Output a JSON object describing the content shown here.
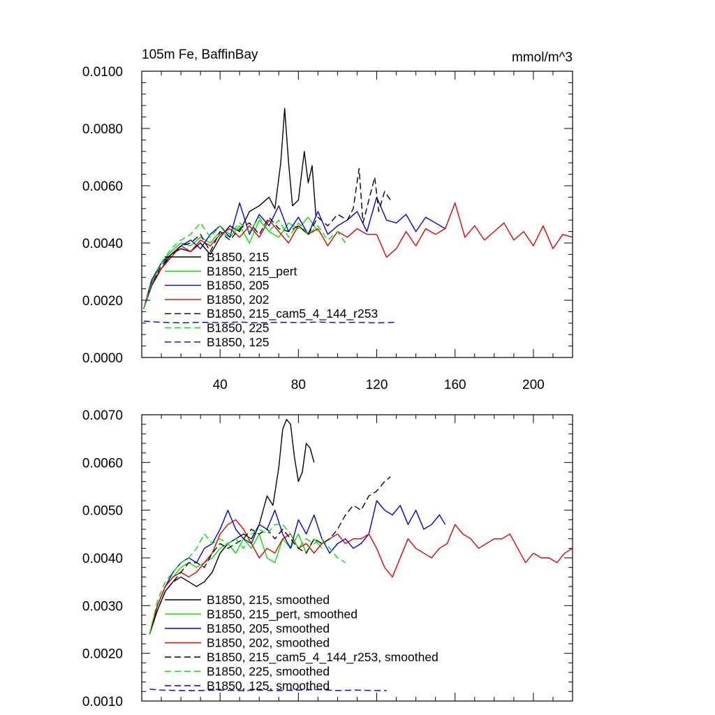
{
  "chart_data": [
    {
      "type": "line",
      "title": "105m Fe, BaffinBay",
      "units": "mmol/m^3",
      "xlim": [
        0,
        220
      ],
      "ylim": [
        0,
        0.01
      ],
      "xticks": [
        40,
        80,
        120,
        160,
        200
      ],
      "xtick_labels": [
        "40",
        "80",
        "120",
        "160",
        "200"
      ],
      "yticks": [
        0,
        0.002,
        0.004,
        0.006,
        0.008,
        0.01
      ],
      "ytick_labels": [
        "0.0000",
        "0.0020",
        "0.0040",
        "0.0060",
        "0.0080",
        "0.0100"
      ],
      "legend_position": "lower-left",
      "series": [
        {
          "name": "B1850, 215",
          "color": "#000000",
          "dash": "solid",
          "x": [
            1,
            5,
            10,
            15,
            20,
            25,
            30,
            35,
            40,
            45,
            50,
            55,
            60,
            65,
            68,
            71,
            73,
            75,
            77,
            80,
            83,
            85,
            87,
            89
          ],
          "y": [
            0.0017,
            0.0025,
            0.0031,
            0.0036,
            0.0038,
            0.0037,
            0.004,
            0.0036,
            0.0042,
            0.0046,
            0.0044,
            0.0051,
            0.0053,
            0.0056,
            0.0052,
            0.0068,
            0.0087,
            0.0068,
            0.0053,
            0.0055,
            0.0072,
            0.0061,
            0.0067,
            0.0049
          ]
        },
        {
          "name": "B1850, 215_pert",
          "color": "#00e000",
          "dash": "solid",
          "x": [
            1,
            5,
            10,
            15,
            20,
            25,
            30,
            35,
            40,
            45,
            50,
            55,
            60,
            65,
            70,
            75,
            80,
            85,
            90
          ],
          "y": [
            0.0017,
            0.0026,
            0.0033,
            0.0037,
            0.004,
            0.0039,
            0.0042,
            0.004,
            0.0044,
            0.0042,
            0.0046,
            0.004,
            0.0048,
            0.0044,
            0.0042,
            0.0047,
            0.0045,
            0.0049,
            0.0044
          ]
        },
        {
          "name": "B1850, 205",
          "color": "#0000e0",
          "dash": "solid",
          "x": [
            1,
            5,
            10,
            15,
            20,
            25,
            30,
            35,
            40,
            45,
            50,
            55,
            60,
            65,
            70,
            75,
            80,
            85,
            90,
            95,
            100,
            105,
            110,
            115,
            120,
            125,
            130,
            135,
            140,
            145,
            150,
            155
          ],
          "y": [
            0.0017,
            0.0027,
            0.0033,
            0.0036,
            0.0039,
            0.0041,
            0.0038,
            0.0043,
            0.0046,
            0.0042,
            0.0054,
            0.0043,
            0.005,
            0.0046,
            0.0053,
            0.0044,
            0.0049,
            0.0043,
            0.0051,
            0.0043,
            0.0046,
            0.0048,
            0.0051,
            0.0044,
            0.0056,
            0.0048,
            0.0047,
            0.005,
            0.0044,
            0.0049,
            0.0047,
            0.0045
          ]
        },
        {
          "name": "B1850, 202",
          "color": "#e00000",
          "dash": "solid",
          "x": [
            1,
            5,
            10,
            15,
            20,
            25,
            30,
            35,
            40,
            45,
            50,
            55,
            60,
            65,
            70,
            75,
            80,
            85,
            90,
            95,
            100,
            105,
            110,
            115,
            120,
            125,
            130,
            135,
            140,
            145,
            150,
            155,
            160,
            165,
            170,
            175,
            180,
            185,
            190,
            195,
            200,
            205,
            210,
            215,
            220
          ],
          "y": [
            0.0017,
            0.0026,
            0.0031,
            0.0035,
            0.0039,
            0.0037,
            0.0041,
            0.0039,
            0.0043,
            0.0045,
            0.0042,
            0.0046,
            0.0042,
            0.0048,
            0.0044,
            0.004,
            0.0046,
            0.0043,
            0.0045,
            0.0039,
            0.0044,
            0.0042,
            0.0045,
            0.0043,
            0.0043,
            0.0035,
            0.0038,
            0.0044,
            0.0039,
            0.0045,
            0.0043,
            0.0045,
            0.0054,
            0.0042,
            0.0046,
            0.0041,
            0.0044,
            0.0047,
            0.0041,
            0.0044,
            0.0039,
            0.0046,
            0.0038,
            0.0043,
            0.0042
          ]
        },
        {
          "name": "B1850, 215_cam5_4_144_r253",
          "color": "#000000",
          "dash": "dashed",
          "x": [
            1,
            5,
            10,
            15,
            20,
            25,
            30,
            35,
            40,
            45,
            50,
            55,
            60,
            65,
            70,
            75,
            80,
            85,
            90,
            95,
            100,
            105,
            108,
            111,
            113,
            116,
            119,
            121,
            124,
            127
          ],
          "y": [
            0.0017,
            0.0026,
            0.0032,
            0.0036,
            0.0039,
            0.004,
            0.0043,
            0.0037,
            0.0044,
            0.0041,
            0.0045,
            0.0047,
            0.0043,
            0.0049,
            0.0045,
            0.0044,
            0.0046,
            0.0043,
            0.0049,
            0.0046,
            0.005,
            0.0048,
            0.0052,
            0.0066,
            0.0047,
            0.0055,
            0.0063,
            0.0051,
            0.0058,
            0.0055
          ]
        },
        {
          "name": "B1850, 225",
          "color": "#00e000",
          "dash": "dashed",
          "x": [
            1,
            5,
            10,
            15,
            20,
            25,
            30,
            35,
            40,
            45,
            50,
            55,
            60,
            65,
            70,
            75,
            80,
            85,
            90,
            95,
            100,
            105
          ],
          "y": [
            0.0017,
            0.0026,
            0.0033,
            0.0038,
            0.0041,
            0.0043,
            0.0047,
            0.0042,
            0.0046,
            0.0043,
            0.0047,
            0.0044,
            0.0049,
            0.0044,
            0.0048,
            0.0042,
            0.0047,
            0.0043,
            0.0046,
            0.0041,
            0.0044,
            0.0039
          ]
        },
        {
          "name": "B1850, 125",
          "color": "#0000e0",
          "dash": "dashed",
          "x": [
            1,
            10,
            20,
            30,
            40,
            50,
            60,
            70,
            80,
            90,
            100,
            110,
            120,
            130
          ],
          "y": [
            0.00127,
            0.00123,
            0.00121,
            0.00123,
            0.00122,
            0.00124,
            0.00121,
            0.00123,
            0.00122,
            0.00124,
            0.00122,
            0.00123,
            0.00121,
            0.00123
          ]
        }
      ]
    },
    {
      "type": "line",
      "title": "",
      "xlim": [
        0,
        220
      ],
      "ylim": [
        0.001,
        0.007
      ],
      "xticks": [
        40,
        80,
        120,
        160,
        200
      ],
      "yticks": [
        0.001,
        0.002,
        0.003,
        0.004,
        0.005,
        0.006,
        0.007
      ],
      "ytick_labels": [
        "0.0010",
        "0.0020",
        "0.0030",
        "0.0040",
        "0.0050",
        "0.0060",
        "0.0070"
      ],
      "legend_position": "lower-left",
      "series": [
        {
          "name": "B1850, 215, smoothed",
          "color": "#000000",
          "dash": "solid",
          "x": [
            4,
            8,
            12,
            16,
            20,
            24,
            28,
            32,
            36,
            40,
            44,
            48,
            52,
            56,
            60,
            64,
            67,
            70,
            72,
            74,
            76,
            78,
            80,
            82,
            84,
            86,
            88
          ],
          "y": [
            0.0024,
            0.0029,
            0.0033,
            0.0035,
            0.0036,
            0.0035,
            0.0034,
            0.0035,
            0.0037,
            0.0041,
            0.0043,
            0.0044,
            0.0045,
            0.0044,
            0.0047,
            0.0053,
            0.0051,
            0.0059,
            0.0067,
            0.0069,
            0.0068,
            0.0061,
            0.0056,
            0.0058,
            0.0064,
            0.0063,
            0.006
          ]
        },
        {
          "name": "B1850, 215_pert, smoothed",
          "color": "#00e000",
          "dash": "solid",
          "x": [
            4,
            8,
            12,
            16,
            20,
            24,
            28,
            32,
            36,
            40,
            44,
            48,
            52,
            56,
            60,
            64,
            68,
            72,
            76,
            80,
            84,
            88,
            92
          ],
          "y": [
            0.0024,
            0.003,
            0.0034,
            0.0036,
            0.0038,
            0.0039,
            0.0038,
            0.0039,
            0.004,
            0.0042,
            0.0043,
            0.0041,
            0.0044,
            0.0042,
            0.0045,
            0.004,
            0.0039,
            0.0044,
            0.0042,
            0.0045,
            0.0041,
            0.0044,
            0.0042
          ]
        },
        {
          "name": "B1850, 205, smoothed",
          "color": "#0000e0",
          "dash": "solid",
          "x": [
            4,
            8,
            12,
            16,
            20,
            24,
            28,
            32,
            36,
            40,
            44,
            48,
            52,
            56,
            60,
            64,
            68,
            72,
            76,
            80,
            84,
            88,
            92,
            96,
            100,
            104,
            108,
            112,
            116,
            120,
            124,
            128,
            132,
            136,
            140,
            144,
            148,
            152,
            155
          ],
          "y": [
            0.0024,
            0.003,
            0.0034,
            0.0037,
            0.0039,
            0.004,
            0.0039,
            0.0042,
            0.0043,
            0.0046,
            0.005,
            0.0046,
            0.0044,
            0.0043,
            0.0047,
            0.0046,
            0.005,
            0.0045,
            0.0042,
            0.0048,
            0.0045,
            0.0049,
            0.0044,
            0.0041,
            0.0043,
            0.0044,
            0.0042,
            0.0043,
            0.0045,
            0.0052,
            0.005,
            0.0049,
            0.0051,
            0.0047,
            0.005,
            0.0046,
            0.0047,
            0.0049,
            0.0047
          ]
        },
        {
          "name": "B1850, 202, smoothed",
          "color": "#e00000",
          "dash": "solid",
          "x": [
            4,
            8,
            12,
            16,
            20,
            24,
            28,
            32,
            36,
            40,
            44,
            48,
            52,
            56,
            60,
            64,
            68,
            72,
            76,
            80,
            84,
            88,
            92,
            96,
            100,
            104,
            108,
            112,
            116,
            120,
            124,
            128,
            132,
            136,
            140,
            144,
            148,
            152,
            156,
            160,
            164,
            168,
            172,
            176,
            180,
            184,
            188,
            192,
            196,
            200,
            204,
            208,
            212,
            216,
            220
          ],
          "y": [
            0.0024,
            0.003,
            0.0034,
            0.0036,
            0.0037,
            0.0036,
            0.0037,
            0.0039,
            0.0041,
            0.0045,
            0.0047,
            0.0048,
            0.0046,
            0.0043,
            0.004,
            0.0042,
            0.0041,
            0.0044,
            0.0045,
            0.0042,
            0.0043,
            0.0041,
            0.0043,
            0.0044,
            0.0045,
            0.0043,
            0.0044,
            0.0044,
            0.0045,
            0.0042,
            0.0038,
            0.0036,
            0.004,
            0.0044,
            0.0042,
            0.0041,
            0.004,
            0.0042,
            0.0043,
            0.0047,
            0.0045,
            0.0044,
            0.0042,
            0.0043,
            0.0044,
            0.0044,
            0.0045,
            0.0042,
            0.0039,
            0.0041,
            0.004,
            0.004,
            0.0039,
            0.0041,
            0.0042
          ]
        },
        {
          "name": "B1850, 215_cam5_4_144_r253, smoothed",
          "color": "#000000",
          "dash": "dashed",
          "x": [
            4,
            8,
            12,
            16,
            20,
            24,
            28,
            32,
            36,
            40,
            44,
            48,
            52,
            56,
            60,
            64,
            68,
            72,
            76,
            80,
            84,
            88,
            92,
            96,
            100,
            104,
            108,
            112,
            116,
            120,
            124,
            127
          ],
          "y": [
            0.0024,
            0.0029,
            0.0033,
            0.0035,
            0.0037,
            0.0039,
            0.0039,
            0.0038,
            0.0041,
            0.0043,
            0.0042,
            0.0043,
            0.0044,
            0.0046,
            0.0045,
            0.0046,
            0.0044,
            0.0046,
            0.0044,
            0.0042,
            0.0041,
            0.0044,
            0.0043,
            0.0044,
            0.0046,
            0.0049,
            0.0051,
            0.005,
            0.0053,
            0.0054,
            0.0056,
            0.0057
          ]
        },
        {
          "name": "B1850, 225, smoothed",
          "color": "#00e000",
          "dash": "dashed",
          "x": [
            4,
            8,
            12,
            16,
            20,
            24,
            28,
            32,
            36,
            40,
            44,
            48,
            52,
            56,
            60,
            64,
            68,
            72,
            76,
            80,
            84,
            88,
            92,
            96,
            100,
            104
          ],
          "y": [
            0.0024,
            0.0031,
            0.0035,
            0.0037,
            0.0039,
            0.004,
            0.0042,
            0.0045,
            0.0043,
            0.0044,
            0.0043,
            0.0044,
            0.0042,
            0.0045,
            0.0046,
            0.0045,
            0.0047,
            0.0047,
            0.0045,
            0.0042,
            0.0044,
            0.0043,
            0.0044,
            0.0042,
            0.004,
            0.0039
          ]
        },
        {
          "name": "B1850, 125, smoothed",
          "color": "#0000e0",
          "dash": "dashed",
          "x": [
            4,
            10,
            20,
            30,
            40,
            50,
            60,
            70,
            80,
            90,
            100,
            110,
            120,
            125
          ],
          "y": [
            0.00125,
            0.00123,
            0.00122,
            0.00122,
            0.00123,
            0.00122,
            0.00123,
            0.00122,
            0.00123,
            0.00124,
            0.00122,
            0.00123,
            0.00122,
            0.00122
          ]
        }
      ]
    }
  ]
}
